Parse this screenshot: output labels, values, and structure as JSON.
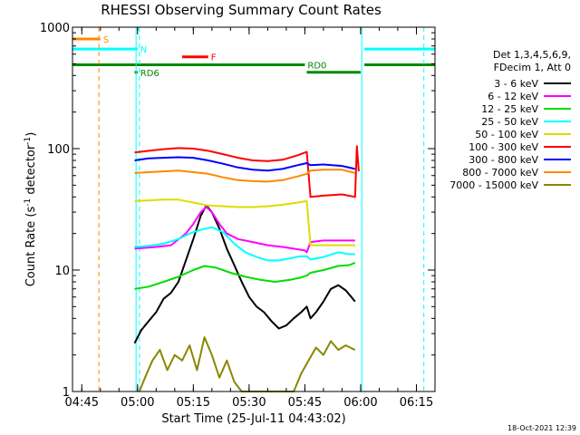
{
  "chart_data": {
    "type": "line",
    "title": "RHESSI Observing Summary Count Rates",
    "xlabel": "Start Time (25-Jul-11 04:43:02)",
    "ylabel_main": "Count Rate (s",
    "ylabel_exp1": "-1",
    "ylabel_mid": " detector",
    "ylabel_exp2": "-1",
    "ylabel_end": ")",
    "footer": "18-Oct-2021 12:39",
    "yscale": "log",
    "xlim_min": [
      -2.5,
      95
    ],
    "ylim": [
      1,
      1000
    ],
    "x_ticks": [
      {
        "min": 0,
        "label": "04:45"
      },
      {
        "min": 15,
        "label": "05:00"
      },
      {
        "min": 30,
        "label": "05:15"
      },
      {
        "min": 45,
        "label": "05:30"
      },
      {
        "min": 60,
        "label": "05:45"
      },
      {
        "min": 75,
        "label": "06:00"
      },
      {
        "min": 90,
        "label": "06:15"
      }
    ],
    "y_ticks": [
      {
        "value": 1,
        "label": "1"
      },
      {
        "value": 10,
        "label": "10"
      },
      {
        "value": 100,
        "label": "100"
      },
      {
        "value": 1000,
        "label": "1000"
      }
    ],
    "legend_title1": "Det 1,3,4,5,6,9,",
    "legend_title2": "FDecim 1, Att 0",
    "series": [
      {
        "name": "3 - 6 keV",
        "color": "#000000",
        "points": [
          [
            14.2,
            2.5
          ],
          [
            16,
            3.2
          ],
          [
            18,
            3.8
          ],
          [
            20,
            4.5
          ],
          [
            22,
            5.8
          ],
          [
            24,
            6.5
          ],
          [
            26,
            8
          ],
          [
            28,
            12
          ],
          [
            30,
            18
          ],
          [
            32,
            28
          ],
          [
            33.5,
            34
          ],
          [
            35,
            30
          ],
          [
            37,
            22
          ],
          [
            39,
            15
          ],
          [
            41,
            11
          ],
          [
            43,
            8
          ],
          [
            45,
            6
          ],
          [
            47,
            5
          ],
          [
            49,
            4.5
          ],
          [
            51,
            3.8
          ],
          [
            53,
            3.3
          ],
          [
            55,
            3.5
          ],
          [
            57,
            4
          ],
          [
            59,
            4.5
          ],
          [
            60.5,
            5
          ],
          [
            61.5,
            4
          ],
          [
            63,
            4.5
          ],
          [
            65,
            5.5
          ],
          [
            67,
            7
          ],
          [
            69,
            7.5
          ],
          [
            71,
            6.8
          ],
          [
            72.5,
            6
          ],
          [
            73.5,
            5.5
          ]
        ]
      },
      {
        "name": "6 - 12 keV",
        "color": "#ff00ff",
        "points": [
          [
            14.2,
            15
          ],
          [
            20,
            15.5
          ],
          [
            24,
            16
          ],
          [
            28,
            20
          ],
          [
            30,
            24
          ],
          [
            32,
            30
          ],
          [
            33.5,
            33
          ],
          [
            35,
            30
          ],
          [
            37,
            24
          ],
          [
            39,
            20
          ],
          [
            42,
            18
          ],
          [
            46,
            17
          ],
          [
            50,
            16
          ],
          [
            54,
            15.5
          ],
          [
            57,
            15
          ],
          [
            60,
            14.5
          ],
          [
            60.5,
            14
          ],
          [
            61.5,
            17
          ],
          [
            65,
            17.5
          ],
          [
            70,
            17.5
          ],
          [
            73.5,
            17.5
          ]
        ]
      },
      {
        "name": "12 - 25 keV",
        "color": "#00dd00",
        "points": [
          [
            14.2,
            7
          ],
          [
            18,
            7.3
          ],
          [
            22,
            8
          ],
          [
            26,
            8.8
          ],
          [
            30,
            10
          ],
          [
            33,
            10.8
          ],
          [
            36,
            10.5
          ],
          [
            40,
            9.5
          ],
          [
            44,
            8.8
          ],
          [
            48,
            8.3
          ],
          [
            52,
            8
          ],
          [
            56,
            8.3
          ],
          [
            59,
            8.7
          ],
          [
            60.5,
            9
          ],
          [
            61.5,
            9.5
          ],
          [
            65,
            10
          ],
          [
            69,
            10.8
          ],
          [
            72,
            11
          ],
          [
            73.5,
            11.5
          ]
        ]
      },
      {
        "name": "25 - 50 keV",
        "color": "#00ffff",
        "points": [
          [
            14.2,
            15.5
          ],
          [
            18,
            15.8
          ],
          [
            22,
            16.5
          ],
          [
            26,
            18
          ],
          [
            29,
            20
          ],
          [
            32,
            21.5
          ],
          [
            35,
            22.5
          ],
          [
            38,
            20.5
          ],
          [
            41,
            16.5
          ],
          [
            44,
            14
          ],
          [
            47,
            12.8
          ],
          [
            50,
            12
          ],
          [
            53,
            12
          ],
          [
            56,
            12.5
          ],
          [
            59,
            13
          ],
          [
            60.5,
            13
          ],
          [
            61.5,
            12.2
          ],
          [
            65,
            12.8
          ],
          [
            69,
            14
          ],
          [
            72,
            13.5
          ],
          [
            73.5,
            13.5
          ]
        ]
      },
      {
        "name": "50 - 100 keV",
        "color": "#dddd00",
        "points": [
          [
            14.2,
            37
          ],
          [
            18,
            37.5
          ],
          [
            22,
            38
          ],
          [
            26,
            38
          ],
          [
            30,
            36
          ],
          [
            34,
            34
          ],
          [
            38,
            33.5
          ],
          [
            42,
            33
          ],
          [
            46,
            33
          ],
          [
            50,
            33.5
          ],
          [
            54,
            34.5
          ],
          [
            58,
            36
          ],
          [
            60.5,
            37
          ],
          [
            61.5,
            16
          ],
          [
            65,
            16
          ],
          [
            70,
            16
          ],
          [
            73.5,
            16
          ]
        ]
      },
      {
        "name": "100 - 300 keV",
        "color": "#ff0000",
        "points": [
          [
            14.2,
            93
          ],
          [
            18,
            96
          ],
          [
            22,
            99
          ],
          [
            26,
            101
          ],
          [
            30,
            100
          ],
          [
            34,
            96
          ],
          [
            38,
            90
          ],
          [
            42,
            84
          ],
          [
            46,
            80
          ],
          [
            50,
            79
          ],
          [
            54,
            81
          ],
          [
            58,
            88
          ],
          [
            60.5,
            94
          ],
          [
            61.5,
            40
          ],
          [
            65,
            41
          ],
          [
            70,
            42
          ],
          [
            73.5,
            40
          ],
          [
            74,
            105
          ],
          [
            74.5,
            65
          ]
        ]
      },
      {
        "name": "300 - 800 keV",
        "color": "#0000ff",
        "points": [
          [
            14.2,
            80
          ],
          [
            18,
            83
          ],
          [
            22,
            84
          ],
          [
            26,
            85
          ],
          [
            30,
            84
          ],
          [
            34,
            80
          ],
          [
            38,
            75
          ],
          [
            42,
            70
          ],
          [
            46,
            67
          ],
          [
            50,
            66
          ],
          [
            54,
            68
          ],
          [
            58,
            73
          ],
          [
            60.5,
            76
          ],
          [
            61.5,
            73
          ],
          [
            65,
            74
          ],
          [
            70,
            72
          ],
          [
            73.5,
            68
          ]
        ]
      },
      {
        "name": "800 - 7000 keV",
        "color": "#ff8800",
        "points": [
          [
            14.2,
            63
          ],
          [
            18,
            64
          ],
          [
            22,
            65
          ],
          [
            26,
            66
          ],
          [
            30,
            64
          ],
          [
            34,
            62
          ],
          [
            38,
            58
          ],
          [
            42,
            55
          ],
          [
            46,
            54
          ],
          [
            50,
            53.5
          ],
          [
            54,
            55
          ],
          [
            58,
            59
          ],
          [
            60.5,
            62
          ],
          [
            61.5,
            66
          ],
          [
            65,
            67
          ],
          [
            70,
            67
          ],
          [
            73.5,
            63
          ]
        ]
      },
      {
        "name": "7000 - 15000 keV",
        "color": "#888800",
        "points": [
          [
            15.5,
            1
          ],
          [
            17,
            1.3
          ],
          [
            19,
            1.8
          ],
          [
            21,
            2.2
          ],
          [
            23,
            1.5
          ],
          [
            25,
            2
          ],
          [
            27,
            1.8
          ],
          [
            29,
            2.4
          ],
          [
            31,
            1.5
          ],
          [
            33,
            2.8
          ],
          [
            35,
            2
          ],
          [
            37,
            1.3
          ],
          [
            39,
            1.8
          ],
          [
            41,
            1.2
          ],
          [
            43,
            1
          ],
          [
            45,
            1
          ],
          [
            49,
            1
          ],
          [
            53,
            1
          ],
          [
            57,
            1
          ],
          [
            59,
            1.4
          ],
          [
            61,
            1.8
          ],
          [
            63,
            2.3
          ],
          [
            65,
            2
          ],
          [
            67,
            2.6
          ],
          [
            69,
            2.2
          ],
          [
            71,
            2.4
          ],
          [
            73.5,
            2.2
          ]
        ]
      }
    ],
    "flag_bars": [
      {
        "label": "S",
        "color": "#ff8800",
        "y": 800,
        "segments": [
          [
            -2.5,
            5
          ]
        ]
      },
      {
        "label": "N",
        "color": "#00ffff",
        "y": 660,
        "segments": [
          [
            -2.5,
            15
          ],
          [
            76,
            95
          ]
        ]
      },
      {
        "label": "F",
        "color": "#ff0000",
        "y": 570,
        "segments": [
          [
            27,
            34
          ]
        ]
      },
      {
        "label": "RD0",
        "color": "#008800",
        "y": 490,
        "segments": [
          [
            -2.5,
            60
          ],
          [
            76,
            95
          ]
        ]
      },
      {
        "label": "RD6",
        "color": "#008800",
        "y": 425,
        "segments": [
          [
            14.2,
            15
          ],
          [
            60.5,
            75
          ]
        ]
      }
    ],
    "vlines": [
      {
        "min": 4.6,
        "color": "#ff8800",
        "style": "dashed"
      },
      {
        "min": 14.6,
        "color": "#00ffff",
        "style": "solid"
      },
      {
        "min": 15.5,
        "color": "#00ffff",
        "style": "dashed"
      },
      {
        "min": 75.3,
        "color": "#00ffff",
        "style": "solid"
      },
      {
        "min": 92,
        "color": "#00ffff",
        "style": "dashed"
      }
    ]
  }
}
